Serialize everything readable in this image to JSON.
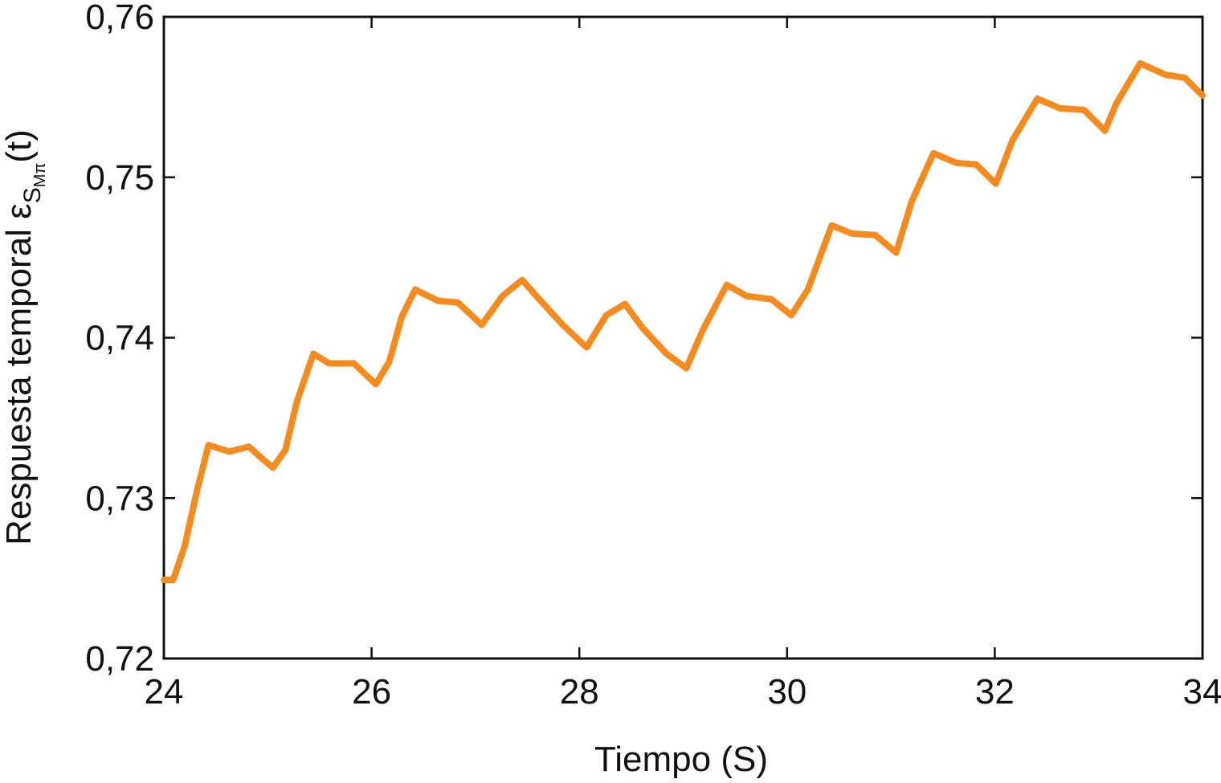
{
  "chart_data": {
    "type": "line",
    "xlabel": "Tiempo  (S)",
    "ylabel": [
      "Respuesta temporal ε",
      "S",
      "Mπ",
      "(t)"
    ],
    "xlim": [
      24,
      34
    ],
    "xticks": [
      24,
      26,
      28,
      30,
      32,
      34
    ],
    "ylim": [
      0.72,
      0.76
    ],
    "yticks": [
      {
        "value": 0.72,
        "label": "0,72"
      },
      {
        "value": 0.73,
        "label": "0,73"
      },
      {
        "value": 0.74,
        "label": "0,74"
      },
      {
        "value": 0.75,
        "label": "0,75"
      },
      {
        "value": 0.76,
        "label": "0,76"
      }
    ],
    "grid": false,
    "series": [
      {
        "color": "#f58a1f",
        "x": [
          24,
          24.09,
          24.2,
          24.32,
          24.43,
          24.63,
          24.82,
          24.94,
          25.05,
          25.17,
          25.28,
          25.44,
          25.59,
          25.83,
          26.04,
          26.17,
          26.29,
          26.42,
          26.64,
          26.83,
          27.06,
          27.26,
          27.45,
          27.6,
          27.84,
          28.07,
          28.26,
          28.44,
          28.61,
          28.84,
          29.03,
          29.19,
          29.42,
          29.61,
          29.85,
          30.04,
          30.2,
          30.43,
          30.62,
          30.85,
          31.05,
          31.2,
          31.41,
          31.63,
          31.82,
          32.01,
          32.17,
          32.41,
          32.63,
          32.86,
          33.06,
          33.17,
          33.4,
          33.64,
          33.83,
          34
        ],
        "values": [
          0.7249,
          0.7249,
          0.727,
          0.7305,
          0.7333,
          0.7329,
          0.7332,
          0.7325,
          0.7319,
          0.733,
          0.736,
          0.739,
          0.7384,
          0.7384,
          0.7371,
          0.7385,
          0.7413,
          0.743,
          0.7423,
          0.7422,
          0.7408,
          0.7426,
          0.7436,
          0.7425,
          0.7408,
          0.7394,
          0.7414,
          0.7421,
          0.7406,
          0.739,
          0.7381,
          0.7405,
          0.7433,
          0.7426,
          0.7424,
          0.7414,
          0.743,
          0.747,
          0.7465,
          0.7464,
          0.7453,
          0.7485,
          0.7515,
          0.7509,
          0.7508,
          0.7496,
          0.7523,
          0.7549,
          0.7543,
          0.7542,
          0.7529,
          0.7546,
          0.7571,
          0.7564,
          0.7562,
          0.7551
        ]
      }
    ]
  }
}
